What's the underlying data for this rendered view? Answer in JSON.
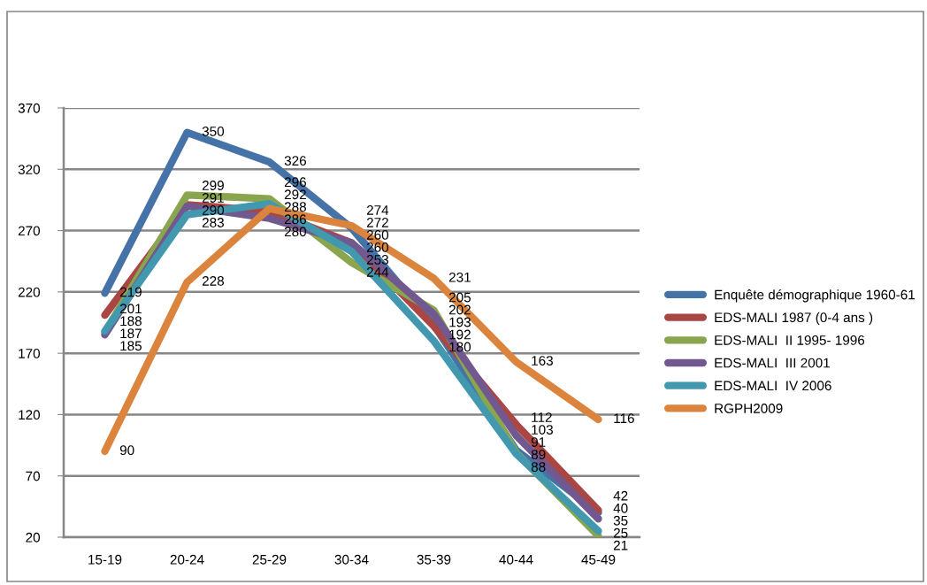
{
  "chart_data": {
    "type": "line",
    "categories": [
      "15-19",
      "20-24",
      "25-29",
      "30-34",
      "35-39",
      "40-44",
      "45-49"
    ],
    "series": [
      {
        "name": "Enquête démographique 1960-61",
        "color": "#4573a7",
        "values": [
          219,
          350,
          326,
          272,
          193,
          91,
          40
        ]
      },
      {
        "name": "EDS-MALI 1987 (0-4 ans )",
        "color": "#aa4643",
        "values": [
          201,
          291,
          286,
          260,
          192,
          112,
          42
        ]
      },
      {
        "name": "EDS-MALI  II 1995- 1996",
        "color": "#89a54e",
        "values": [
          187,
          299,
          296,
          244,
          205,
          89,
          21
        ]
      },
      {
        "name": "EDS-MALI  III 2001",
        "color": "#71588f",
        "values": [
          185,
          290,
          280,
          260,
          202,
          103,
          35
        ]
      },
      {
        "name": "EDS-MALI  IV 2006",
        "color": "#4198af",
        "values": [
          188,
          283,
          292,
          253,
          180,
          88,
          25
        ]
      },
      {
        "name": "RGPH2009",
        "color": "#db843d",
        "values": [
          90,
          228,
          288,
          274,
          231,
          163,
          116
        ]
      }
    ],
    "ylim": [
      20,
      370
    ],
    "yticks": [
      20,
      70,
      120,
      170,
      220,
      270,
      320,
      370
    ],
    "grid": "y",
    "legend": "right",
    "data_labels": true
  }
}
